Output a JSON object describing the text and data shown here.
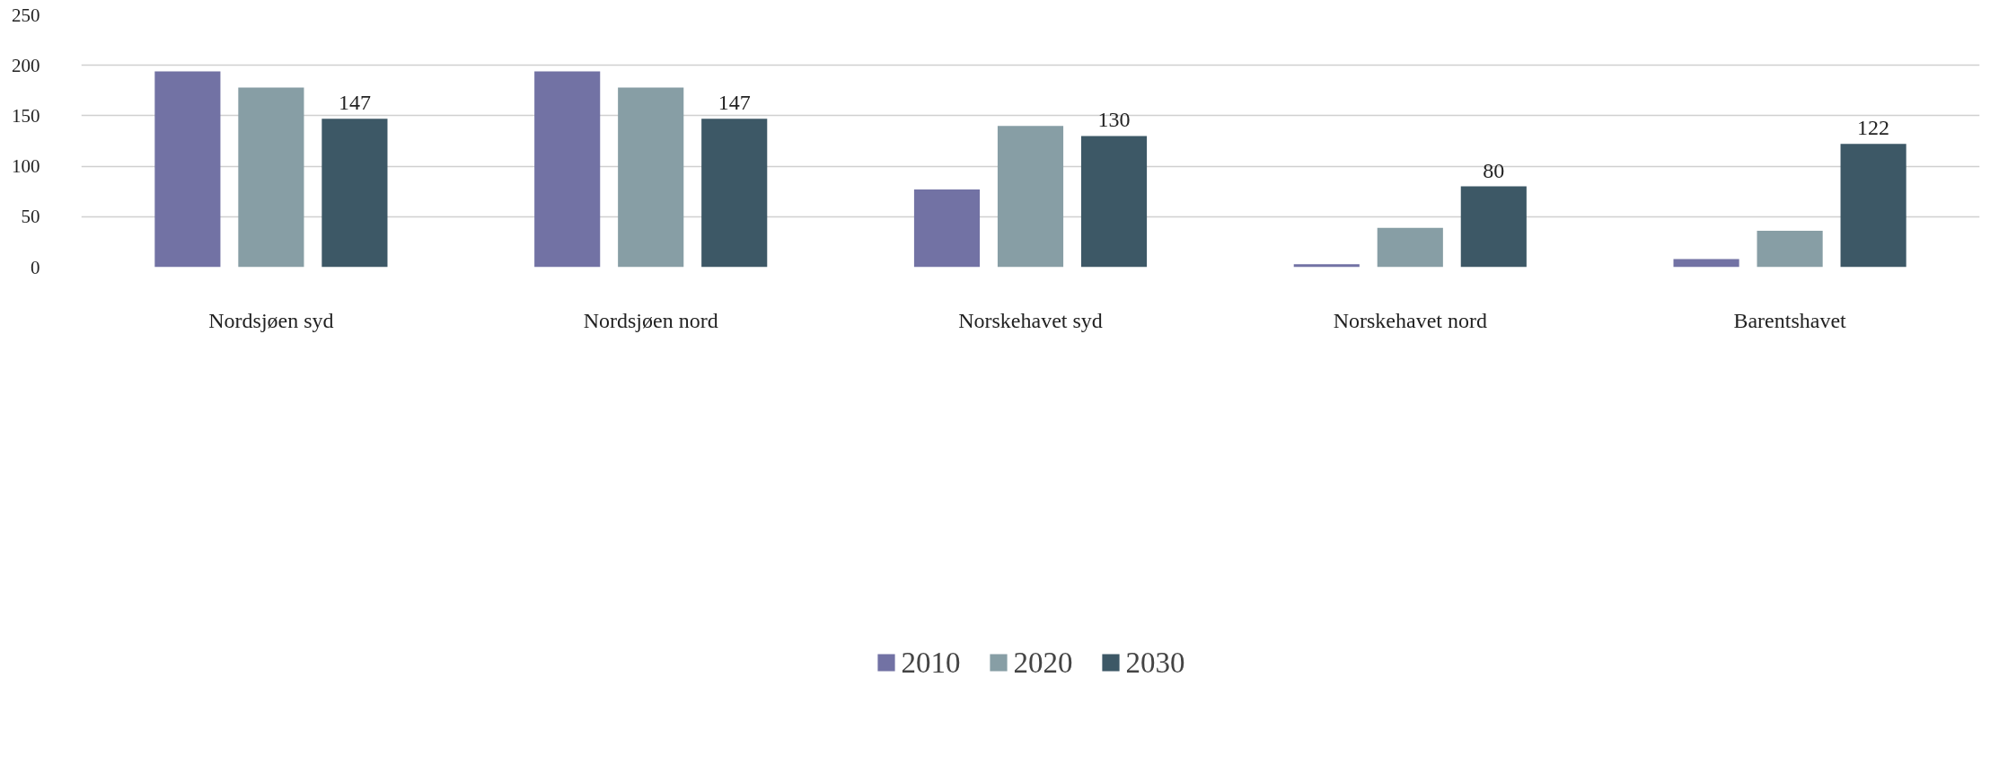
{
  "chart_data": {
    "type": "bar",
    "categories": [
      "Nordsjøen syd",
      "Nordsjøen nord",
      "Norskehavet syd",
      "Norskehavet nord",
      "Barentshavet"
    ],
    "series": [
      {
        "name": "2010",
        "color": "#7272a4",
        "values": [
          194,
          194,
          77,
          3,
          8
        ]
      },
      {
        "name": "2020",
        "color": "#879ea5",
        "values": [
          178,
          178,
          140,
          39,
          36
        ]
      },
      {
        "name": "2030",
        "color": "#3d5866",
        "values": [
          147,
          147,
          130,
          80,
          122
        ],
        "value_labels": [
          "147",
          "147",
          "130",
          "80",
          "122"
        ]
      }
    ],
    "ylim": [
      0,
      250
    ],
    "yticks": [
      0,
      50,
      100,
      150,
      200,
      250
    ],
    "grid": "y",
    "legend": "bottom"
  }
}
